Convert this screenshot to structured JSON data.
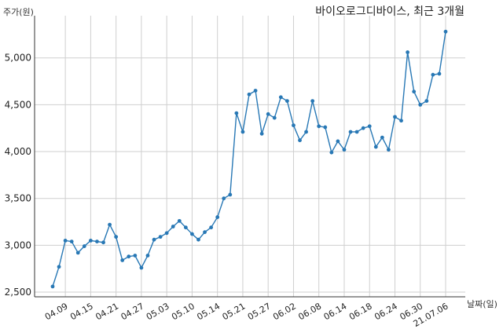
{
  "chart_data": {
    "type": "line",
    "title": "바이오로그디바이스, 최근 3개월",
    "ylabel": "주가(원)",
    "xlabel": "날짜(일)",
    "ylim": [
      2450,
      5450
    ],
    "yticks": [
      2500,
      3000,
      3500,
      4000,
      4500,
      5000
    ],
    "ytick_labels": [
      "2,500",
      "3,000",
      "3,500",
      "4,000",
      "4,500",
      "5,000"
    ],
    "xtick_labels": [
      "04.09",
      "04.15",
      "04.21",
      "04.27",
      "05.03",
      "05.10",
      "05.14",
      "05.21",
      "05.27",
      "06.02",
      "06.08",
      "06.14",
      "06.18",
      "06.24",
      "06.30",
      "21.07.06"
    ],
    "xtick_index": [
      2,
      6,
      10,
      14,
      18,
      22,
      26,
      30,
      34,
      38,
      42,
      46,
      50,
      54,
      58,
      62
    ],
    "grid": true,
    "line_color": "#2878b5",
    "series": [
      {
        "values": [
          2560,
          2770,
          3050,
          3040,
          2920,
          2990,
          3050,
          3040,
          3030,
          3220,
          3090,
          2840,
          2880,
          2890,
          2760,
          2890,
          3060,
          3090,
          3130,
          3200,
          3260,
          3190,
          3120,
          3060,
          3140,
          3190,
          3300,
          3500,
          3540,
          4410,
          4210,
          4610,
          4650,
          4190,
          4400,
          4360,
          4580,
          4540,
          4280,
          4120,
          4210,
          4540,
          4270,
          4260,
          3990,
          4110,
          4020,
          4210,
          4210,
          4250,
          4270,
          4050,
          4150,
          4020,
          4370,
          4330,
          5060,
          4640,
          4500,
          4540,
          4820,
          4830,
          5280
        ]
      }
    ]
  }
}
